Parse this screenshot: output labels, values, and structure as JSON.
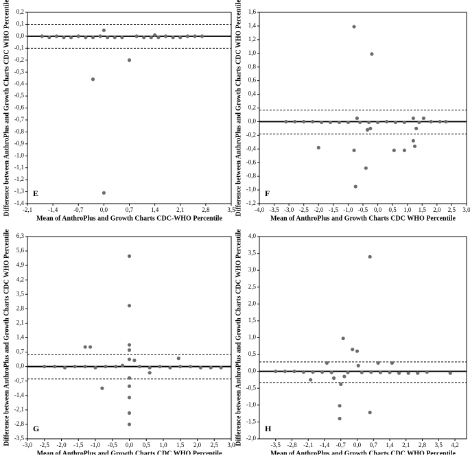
{
  "chart_data": [
    {
      "type": "scatter",
      "panel": "E",
      "x_label": "Mean of AnthroPlus and Growth Charts CDC-WHO Percentile",
      "y_label": "Difference between AnthroPlus and Growth Charts CDC WHO Percentile",
      "xlim": [
        -2.1,
        3.5
      ],
      "ylim": [
        -1.4,
        0.2
      ],
      "xticks": [
        {
          "value": -2.1,
          "label": "-2,1"
        },
        {
          "value": -1.4,
          "label": "-1,4"
        },
        {
          "value": -0.7,
          "label": "-0,7"
        },
        {
          "value": 0.0,
          "label": "0,0"
        },
        {
          "value": 0.7,
          "label": "0,7"
        },
        {
          "value": 1.4,
          "label": "1,4"
        },
        {
          "value": 2.1,
          "label": "2,1"
        },
        {
          "value": 2.8,
          "label": "2,8"
        },
        {
          "value": 3.5,
          "label": "3,5"
        }
      ],
      "yticks": [
        {
          "value": 0.2,
          "label": "0,2"
        },
        {
          "value": 0.1,
          "label": "0,1"
        },
        {
          "value": 0.0,
          "label": "0,0"
        },
        {
          "value": -0.1,
          "label": "-0,1"
        },
        {
          "value": -0.2,
          "label": "-0,2"
        },
        {
          "value": -0.3,
          "label": "-0,3"
        },
        {
          "value": -0.4,
          "label": "-0,4"
        },
        {
          "value": -0.5,
          "label": "-0,5"
        },
        {
          "value": -0.6,
          "label": "-0,6"
        },
        {
          "value": -0.7,
          "label": "-0,7"
        },
        {
          "value": -0.8,
          "label": "-0,8"
        },
        {
          "value": -0.9,
          "label": "-0,9"
        },
        {
          "value": -1.0,
          "label": "-1,0"
        },
        {
          "value": -1.1,
          "label": "-1,1"
        },
        {
          "value": -1.2,
          "label": "-1,2"
        },
        {
          "value": -1.3,
          "label": "-1,3"
        },
        {
          "value": -1.4,
          "label": "-1,4"
        }
      ],
      "hlines": [
        {
          "value": 0,
          "style": "solid"
        },
        {
          "value": 0.1,
          "style": "dashed"
        },
        {
          "value": -0.1,
          "style": "dashed"
        }
      ],
      "color": "#6b6b6b",
      "x": [
        -1.7,
        -1.5,
        -1.3,
        -1.1,
        -0.9,
        -0.7,
        -0.5,
        -0.3,
        -0.1,
        0.1,
        0.3,
        0.5,
        0.9,
        1.1,
        1.3,
        1.5,
        1.7,
        1.9,
        2.1,
        2.3,
        2.5,
        2.7,
        0.0,
        0.7,
        -0.3,
        0.0,
        1.4
      ],
      "y": [
        0,
        -0.01,
        0,
        -0.01,
        -0.01,
        0,
        -0.01,
        -0.01,
        0,
        -0.01,
        -0.01,
        -0.01,
        0,
        -0.01,
        -0.01,
        -0.01,
        0,
        -0.01,
        -0.01,
        0,
        0,
        0,
        0.05,
        -0.2,
        -0.36,
        -1.31,
        0.01
      ]
    },
    {
      "type": "scatter",
      "panel": "F",
      "x_label": "Mean of AnthroPlus and Growth Charts CDC WHO Percentile",
      "y_label": "Difference between AnthroPlus and Growth Charts CDC WHO Percentile",
      "xlim": [
        -4.0,
        3.0
      ],
      "ylim": [
        -1.2,
        1.6
      ],
      "xticks": [
        {
          "value": -4.0,
          "label": "-4,0"
        },
        {
          "value": -3.5,
          "label": "-3,5"
        },
        {
          "value": -3.0,
          "label": "-3,0"
        },
        {
          "value": -2.5,
          "label": "-2,5"
        },
        {
          "value": -2.0,
          "label": "-2,0"
        },
        {
          "value": -1.5,
          "label": "-1,5"
        },
        {
          "value": -1.0,
          "label": "-1,0"
        },
        {
          "value": -0.5,
          "label": "-0,5"
        },
        {
          "value": 0.0,
          "label": "0,0"
        },
        {
          "value": 0.5,
          "label": "0,5"
        },
        {
          "value": 1.0,
          "label": "1,0"
        },
        {
          "value": 1.5,
          "label": "1,5"
        },
        {
          "value": 2.0,
          "label": "2,0"
        },
        {
          "value": 2.5,
          "label": "2,5"
        },
        {
          "value": 3.0,
          "label": "3,0"
        }
      ],
      "yticks": [
        {
          "value": -1.2,
          "label": "-1,2"
        },
        {
          "value": -1.0,
          "label": "-1,0"
        },
        {
          "value": -0.8,
          "label": "-0,8"
        },
        {
          "value": -0.6,
          "label": "-0,6"
        },
        {
          "value": -0.4,
          "label": "-0,4"
        },
        {
          "value": -0.2,
          "label": "-0,2"
        },
        {
          "value": 0.0,
          "label": "0,0"
        },
        {
          "value": 0.2,
          "label": "0,2"
        },
        {
          "value": 0.4,
          "label": "0,4"
        },
        {
          "value": 0.6,
          "label": "0,6"
        },
        {
          "value": 0.8,
          "label": "0,8"
        },
        {
          "value": 1.0,
          "label": "1,0"
        },
        {
          "value": 1.2,
          "label": "1,2"
        },
        {
          "value": 1.4,
          "label": "1,4"
        },
        {
          "value": 1.6,
          "label": "1,6"
        }
      ],
      "hlines": [
        {
          "value": 0,
          "style": "solid"
        },
        {
          "value": 0.17,
          "style": "dashed"
        },
        {
          "value": -0.18,
          "style": "dashed"
        }
      ],
      "color": "#6b6b6b",
      "x": [
        -3.1,
        -2.8,
        -2.5,
        -2.2,
        -1.9,
        -1.6,
        -1.3,
        -1.0,
        -0.6,
        -0.3,
        0.0,
        0.3,
        0.6,
        0.9,
        1.4,
        1.8,
        2.1,
        2.3,
        -0.8,
        -0.2,
        -0.7,
        -2.0,
        -0.8,
        -0.4,
        -0.75,
        -0.35,
        -0.25,
        0.55,
        0.9,
        1.2,
        1.25,
        1.2,
        1.55,
        1.3
      ],
      "y": [
        0,
        0,
        0,
        0,
        -0.01,
        -0.01,
        -0.01,
        -0.01,
        -0.01,
        -0.01,
        -0.01,
        0,
        -0.01,
        -0.01,
        -0.01,
        0,
        0,
        0,
        1.39,
        0.99,
        0.05,
        -0.38,
        -0.42,
        -0.68,
        -0.95,
        -0.12,
        -0.1,
        -0.42,
        -0.42,
        -0.28,
        -0.36,
        0.05,
        0.05,
        -0.1
      ]
    },
    {
      "type": "scatter",
      "panel": "G",
      "x_label": "Mean of AnthroPlus and Growth Charts CDC WHO Percentile",
      "y_label": "Difference between AnthroPlus and Growth Charts CDC WHO Percentile",
      "xlim": [
        -3.0,
        3.0
      ],
      "ylim": [
        -3.5,
        6.3
      ],
      "xticks": [
        {
          "value": -3.0,
          "label": "-3,0"
        },
        {
          "value": -2.5,
          "label": "-2,5"
        },
        {
          "value": -2.0,
          "label": "-2,0"
        },
        {
          "value": -1.5,
          "label": "-1,5"
        },
        {
          "value": -1.0,
          "label": "-1,0"
        },
        {
          "value": -0.5,
          "label": "-0,5"
        },
        {
          "value": 0.0,
          "label": "0,0"
        },
        {
          "value": 0.5,
          "label": "0,5"
        },
        {
          "value": 1.0,
          "label": "1,0"
        },
        {
          "value": 1.5,
          "label": "1,5"
        },
        {
          "value": 2.0,
          "label": "2,0"
        },
        {
          "value": 2.5,
          "label": "2,5"
        },
        {
          "value": 3.0,
          "label": "3,0"
        }
      ],
      "yticks": [
        {
          "value": -3.5,
          "label": "-3,5"
        },
        {
          "value": -2.8,
          "label": "-2,8"
        },
        {
          "value": -2.1,
          "label": "-2,1"
        },
        {
          "value": -1.4,
          "label": "-1,4"
        },
        {
          "value": -0.7,
          "label": "-0,7"
        },
        {
          "value": 0.0,
          "label": "0,0"
        },
        {
          "value": 0.7,
          "label": "0,7"
        },
        {
          "value": 1.4,
          "label": "1,4"
        },
        {
          "value": 2.1,
          "label": "2,1"
        },
        {
          "value": 2.8,
          "label": "2,8"
        },
        {
          "value": 3.5,
          "label": "3,5"
        },
        {
          "value": 4.2,
          "label": "4,2"
        },
        {
          "value": 4.9,
          "label": "4,9"
        },
        {
          "value": 5.6,
          "label": "5,6"
        },
        {
          "value": 6.3,
          "label": "6,3"
        }
      ],
      "hlines": [
        {
          "value": 0,
          "style": "solid"
        },
        {
          "value": 0.58,
          "style": "dashed"
        },
        {
          "value": -0.6,
          "style": "dashed"
        }
      ],
      "color": "#6b6b6b",
      "x": [
        -2.5,
        -2.2,
        -1.9,
        -1.6,
        -1.3,
        -1.0,
        -0.7,
        -0.4,
        -0.2,
        0.3,
        0.6,
        0.9,
        1.2,
        1.5,
        1.8,
        2.1,
        2.4,
        2.7,
        -1.3,
        -1.15,
        -0.8,
        0.0,
        0.0,
        0.0,
        0.0,
        0.0,
        0.0,
        0.0,
        0.0,
        0.0,
        0.0,
        0.15,
        0.6,
        1.45
      ],
      "y": [
        0,
        0,
        -0.05,
        0,
        0,
        -0.05,
        0,
        0,
        0.05,
        0,
        -0.05,
        0,
        -0.05,
        0,
        0,
        -0.05,
        -0.05,
        -0.05,
        0.95,
        0.95,
        -1.05,
        5.35,
        2.95,
        1.05,
        0.8,
        0.35,
        -0.55,
        -0.95,
        -1.5,
        -2.25,
        -2.8,
        0.3,
        -0.3,
        0.4
      ]
    },
    {
      "type": "scatter",
      "panel": "H",
      "x_label": "Mean of AnthroPlus and Growth Charts CDC WHO Percentile",
      "y_label": "Difference between AnthroPlus and Growth Charts CDC WHO Percentile",
      "xlim": [
        -4.2,
        4.7
      ],
      "ylim": [
        -2.0,
        4.0
      ],
      "xticks": [
        {
          "value": -3.5,
          "label": "-3,5"
        },
        {
          "value": -2.8,
          "label": "-2,8"
        },
        {
          "value": -2.1,
          "label": "-2,1"
        },
        {
          "value": -1.4,
          "label": "-1,4"
        },
        {
          "value": -0.7,
          "label": "-0,7"
        },
        {
          "value": 0.0,
          "label": "0,0"
        },
        {
          "value": 0.7,
          "label": "0,7"
        },
        {
          "value": 1.4,
          "label": "1,4"
        },
        {
          "value": 2.1,
          "label": "2,1"
        },
        {
          "value": 2.8,
          "label": "2,8"
        },
        {
          "value": 3.5,
          "label": "3,5"
        },
        {
          "value": 4.2,
          "label": "4,2"
        }
      ],
      "yticks": [
        {
          "value": -2.0,
          "label": "-2,0"
        },
        {
          "value": -1.5,
          "label": "-1,5"
        },
        {
          "value": -1.0,
          "label": "-1,0"
        },
        {
          "value": -0.5,
          "label": "-0,5"
        },
        {
          "value": 0.0,
          "label": "0,0"
        },
        {
          "value": 0.5,
          "label": "0,5"
        },
        {
          "value": 1.0,
          "label": "1,0"
        },
        {
          "value": 1.5,
          "label": "1,5"
        },
        {
          "value": 2.0,
          "label": "2,0"
        },
        {
          "value": 2.5,
          "label": "2,5"
        },
        {
          "value": 3.0,
          "label": "3,0"
        },
        {
          "value": 3.5,
          "label": "3,5"
        },
        {
          "value": 4.0,
          "label": "4,0"
        }
      ],
      "hlines": [
        {
          "value": 0,
          "style": "solid"
        },
        {
          "value": 0.28,
          "style": "dashed"
        },
        {
          "value": -0.33,
          "style": "dashed"
        }
      ],
      "color": "#6b6b6b",
      "x": [
        -3.5,
        -3.1,
        -2.7,
        -2.3,
        -1.9,
        -1.5,
        -1.1,
        -0.4,
        0.2,
        0.6,
        1.0,
        1.4,
        1.8,
        2.2,
        2.6,
        3.0,
        4.0,
        0.55,
        -0.6,
        -0.2,
        0.0,
        0.05,
        -1.3,
        0.9,
        1.5,
        -0.7,
        -0.75,
        -0.75,
        0.55,
        -1.0,
        -2.0,
        -0.55
      ],
      "y": [
        0,
        0,
        0,
        -0.02,
        -0.02,
        -0.02,
        -0.03,
        -0.03,
        -0.03,
        -0.02,
        -0.03,
        -0.03,
        -0.05,
        -0.05,
        -0.05,
        -0.02,
        -0.05,
        3.4,
        0.98,
        0.65,
        0.6,
        0.17,
        0.25,
        0.25,
        0.25,
        -0.38,
        -1.02,
        -1.4,
        -1.22,
        -0.2,
        -0.25,
        -0.15
      ]
    }
  ]
}
